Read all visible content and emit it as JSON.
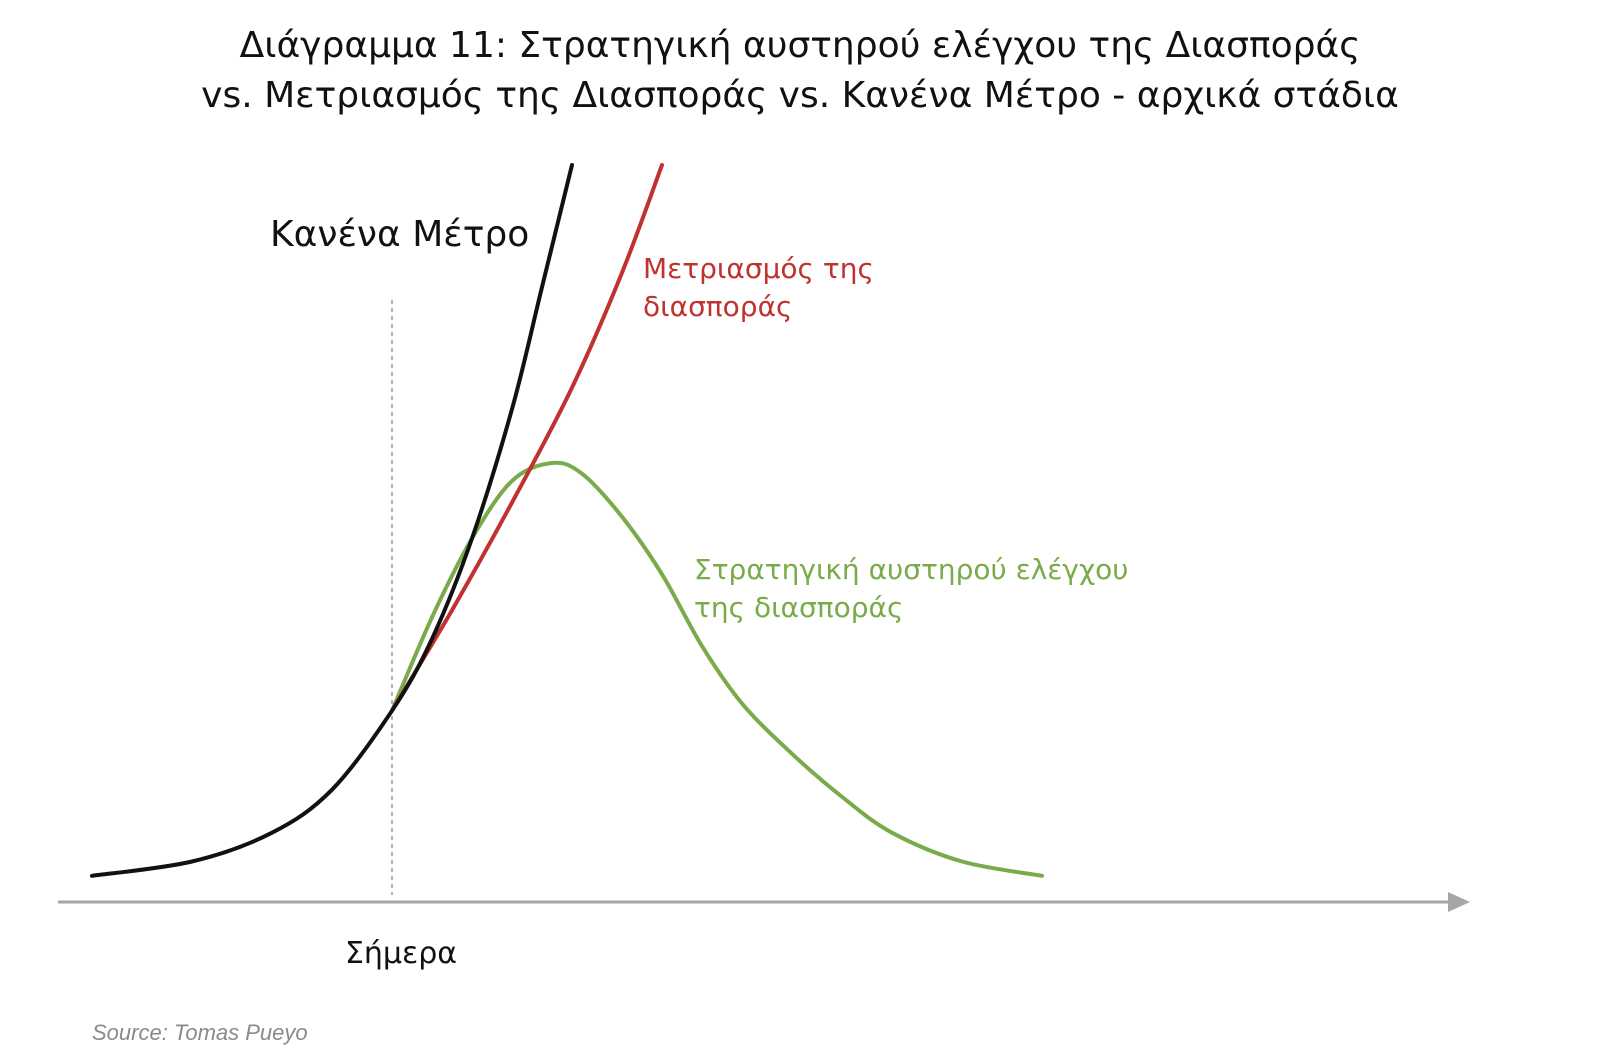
{
  "title_line1": "Διάγραμμα 11: Στρατηγική αυστηρού ελέγχου της Διασποράς",
  "title_line2": "vs. Μετριασμός της Διασποράς vs. Κανένα Μέτρο - αρχικά στάδια",
  "source": "Source: Tomas Pueyo",
  "colors": {
    "no_measure": "#111111",
    "mitigation": "#c0322f",
    "suppression": "#7aab4b",
    "axis": "#a6a6a6",
    "today_line": "#9a9a9a",
    "source_text": "#8a8a8a"
  },
  "chart_data": {
    "type": "line",
    "title": "Διάγραμμα 11: Στρατηγική αυστηρού ελέγχου της Διασποράς vs. Μετριασμός της Διασποράς vs. Κανένα Μέτρο - αρχικά στάδια",
    "xlabel": "",
    "ylabel": "",
    "x_axis": "arrow, no numeric ticks",
    "y_axis": "none",
    "grid": false,
    "annotations": [
      {
        "text": "Σήμερα",
        "x": 30
      }
    ],
    "today_x": 30,
    "xlim": [
      0,
      145
    ],
    "ylim": [
      0,
      100
    ],
    "series": [
      {
        "name": "Κανένα Μέτρο",
        "label_lines": [
          "Κανένα Μέτρο"
        ],
        "color": "#111111",
        "x": [
          0,
          10,
          18,
          24,
          30,
          34,
          38,
          42,
          45,
          48
        ],
        "y": [
          1,
          3,
          7,
          13,
          24,
          34,
          48,
          66,
          83,
          100
        ]
      },
      {
        "name": "Μετριασμός της διασποράς",
        "label_lines": [
          "Μετριασμός της",
          "διασποράς"
        ],
        "color": "#c0322f",
        "x": [
          30,
          36,
          42,
          48,
          53,
          57
        ],
        "y": [
          24,
          38,
          53,
          69,
          85,
          100
        ]
      },
      {
        "name": "Στρατηγική αυστηρού ελέγχου της διασποράς",
        "label_lines": [
          "Στρατηγική αυστηρού ελέγχου",
          "της διασποράς"
        ],
        "color": "#7aab4b",
        "x": [
          30,
          34,
          38,
          42,
          46,
          49,
          53,
          57,
          61,
          65,
          70,
          75,
          80,
          87,
          95
        ],
        "y": [
          24,
          37,
          48,
          56,
          58.5,
          57,
          51,
          43,
          33,
          25,
          18,
          12,
          7,
          3,
          1
        ]
      }
    ]
  }
}
